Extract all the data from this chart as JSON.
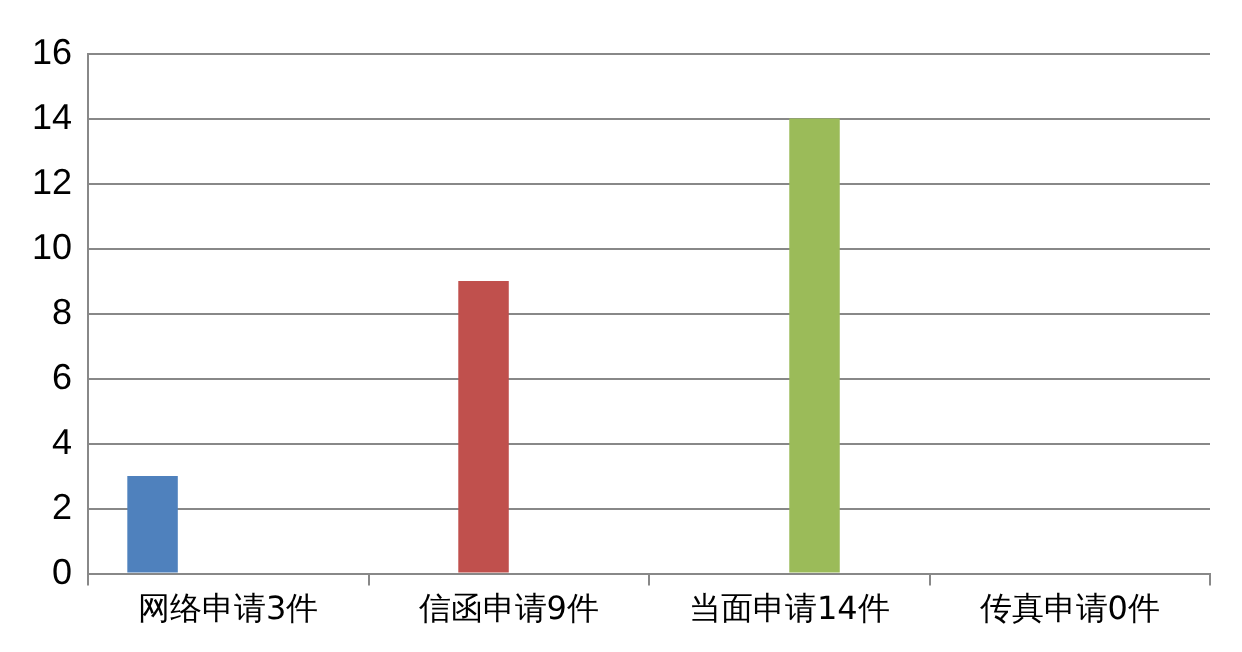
{
  "chart_data": {
    "type": "bar",
    "categories": [
      "网络申请3件",
      "信函申请9件",
      "当面申请14件",
      "传真申请0件"
    ],
    "series": [
      {
        "color": "#4f81bd",
        "values": [
          3,
          null,
          null,
          null
        ]
      },
      {
        "color": "#c0504d",
        "values": [
          null,
          9,
          null,
          null
        ]
      },
      {
        "color": "#9bbb59",
        "values": [
          null,
          null,
          14,
          null
        ]
      },
      {
        "color": "#8064a2",
        "values": [
          null,
          null,
          null,
          0
        ]
      }
    ],
    "ylim": [
      0,
      16
    ],
    "yticks": [
      0,
      2,
      4,
      6,
      8,
      10,
      12,
      14,
      16
    ],
    "grid": "y",
    "legend": false
  }
}
